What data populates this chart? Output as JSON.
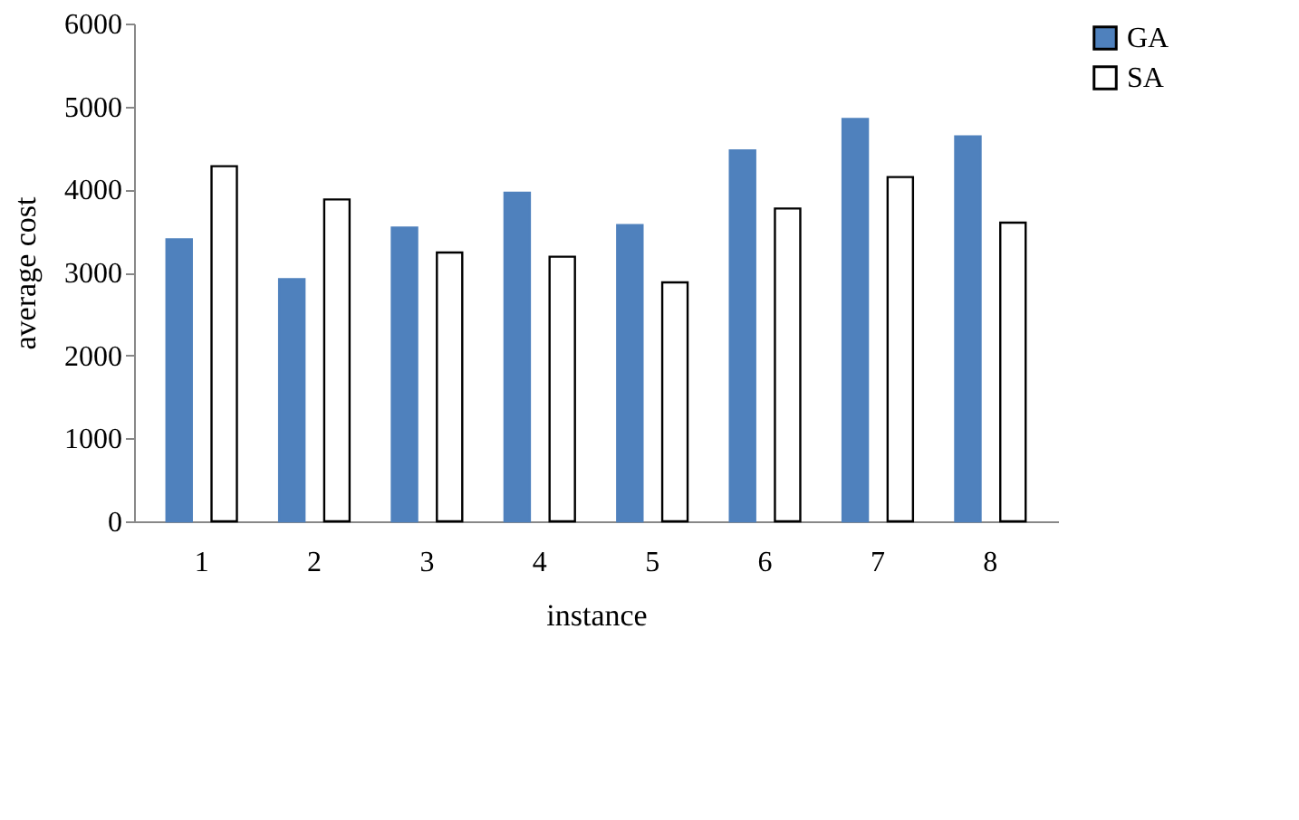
{
  "chart_data": {
    "type": "bar",
    "xlabel": "instance",
    "ylabel": "average cost",
    "categories": [
      "1",
      "2",
      "3",
      "4",
      "5",
      "6",
      "7",
      "8"
    ],
    "series": [
      {
        "name": "GA",
        "color": "#4f81bd",
        "values": [
          3400,
          2920,
          3540,
          3960,
          3570,
          4470,
          4850,
          4640
        ]
      },
      {
        "name": "SA",
        "color": "#ffffff",
        "values": [
          4280,
          3880,
          3240,
          3190,
          2880,
          3770,
          4150,
          3600
        ]
      }
    ],
    "ylim": [
      0,
      6000
    ],
    "yticks": [
      0,
      1000,
      2000,
      3000,
      4000,
      5000,
      6000
    ],
    "grid": false,
    "legend": "right"
  }
}
